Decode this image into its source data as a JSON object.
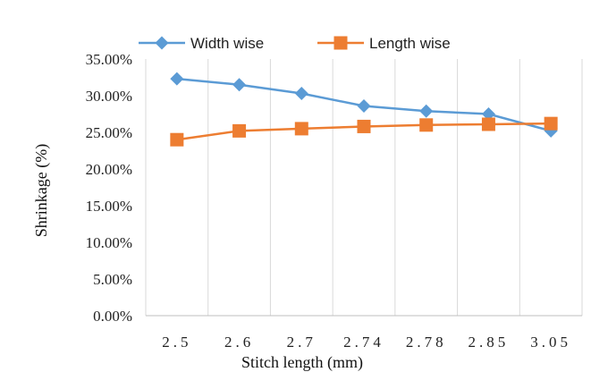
{
  "chart_data": {
    "type": "line",
    "title": "",
    "xlabel": "Stitch length (mm)",
    "ylabel": "Shrinkage (%)",
    "categories": [
      "2.5",
      "2.6",
      "2.7",
      "2.74",
      "2.78",
      "2.85",
      "3.05"
    ],
    "ylim": [
      0,
      0.35
    ],
    "ytick_values": [
      0,
      0.05,
      0.1,
      0.15,
      0.2,
      0.25,
      0.3,
      0.35
    ],
    "ytick_labels": [
      "0.00%",
      "5.00%",
      "10.00%",
      "15.00%",
      "20.00%",
      "25.00%",
      "30.00%",
      "35.00%"
    ],
    "grid": "vertical",
    "legend_position": "top",
    "series": [
      {
        "name": "Width wise",
        "color": "#5B9BD5",
        "marker": "diamond",
        "values": [
          0.323,
          0.315,
          0.303,
          0.286,
          0.279,
          0.275,
          0.252
        ]
      },
      {
        "name": "Length wise",
        "color": "#ED7D31",
        "marker": "square",
        "values": [
          0.24,
          0.252,
          0.255,
          0.258,
          0.26,
          0.261,
          0.262
        ]
      }
    ]
  }
}
